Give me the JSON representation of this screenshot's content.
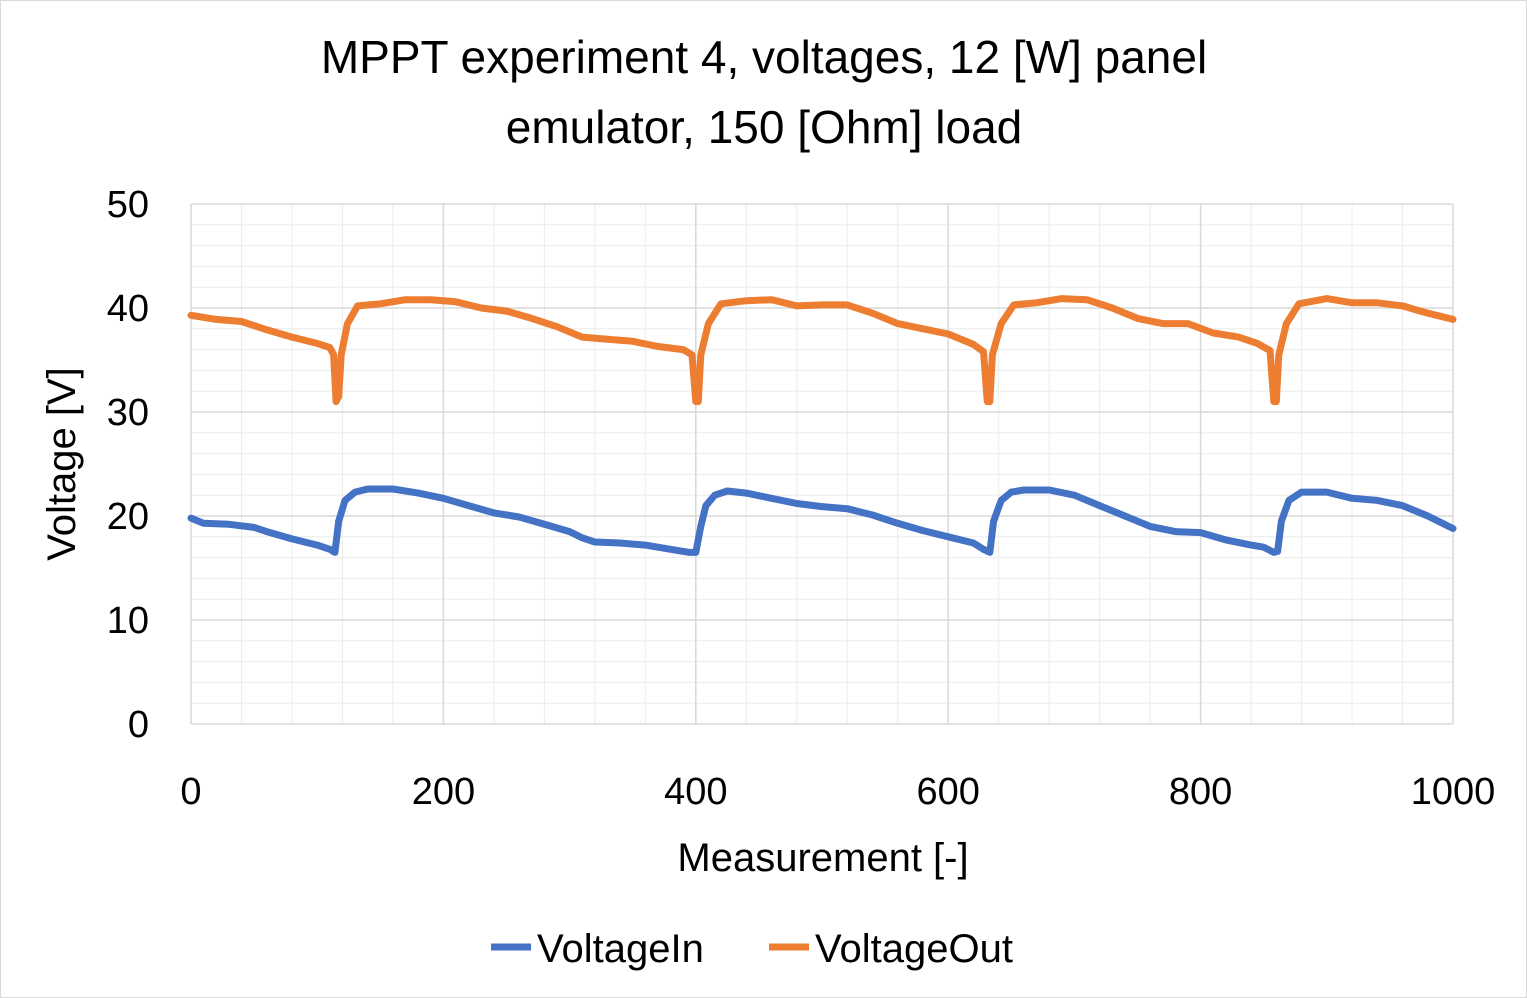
{
  "chart_data": {
    "type": "line",
    "title_lines": [
      "MPPT experiment 4, voltages, 12 [W] panel",
      "emulator, 150 [Ohm] load"
    ],
    "xlabel": "Measurement [-]",
    "ylabel": "Voltage [V]",
    "xlim": [
      0,
      1000
    ],
    "ylim": [
      0,
      50
    ],
    "x_ticks": [
      "0",
      "200",
      "400",
      "600",
      "800",
      "1000"
    ],
    "y_ticks": [
      "0",
      "10",
      "20",
      "30",
      "40",
      "50"
    ],
    "grid": "major and minor",
    "legend_position": "bottom",
    "series": [
      {
        "name": "VoltageIn",
        "color": "#4472C4",
        "points": [
          [
            0,
            19.8
          ],
          [
            10,
            19.3
          ],
          [
            30,
            19.2
          ],
          [
            50,
            18.9
          ],
          [
            60,
            18.5
          ],
          [
            80,
            17.8
          ],
          [
            100,
            17.2
          ],
          [
            110,
            16.8
          ],
          [
            114,
            16.5
          ],
          [
            117,
            19.5
          ],
          [
            122,
            21.5
          ],
          [
            130,
            22.3
          ],
          [
            140,
            22.6
          ],
          [
            160,
            22.6
          ],
          [
            180,
            22.2
          ],
          [
            200,
            21.7
          ],
          [
            220,
            21.0
          ],
          [
            240,
            20.3
          ],
          [
            260,
            19.9
          ],
          [
            280,
            19.2
          ],
          [
            300,
            18.5
          ],
          [
            310,
            17.9
          ],
          [
            320,
            17.5
          ],
          [
            340,
            17.4
          ],
          [
            360,
            17.2
          ],
          [
            380,
            16.8
          ],
          [
            395,
            16.5
          ],
          [
            400,
            16.5
          ],
          [
            404,
            19.0
          ],
          [
            408,
            21.0
          ],
          [
            415,
            22.0
          ],
          [
            425,
            22.4
          ],
          [
            440,
            22.2
          ],
          [
            460,
            21.7
          ],
          [
            480,
            21.2
          ],
          [
            500,
            20.9
          ],
          [
            520,
            20.7
          ],
          [
            540,
            20.1
          ],
          [
            560,
            19.3
          ],
          [
            580,
            18.6
          ],
          [
            600,
            18.0
          ],
          [
            620,
            17.4
          ],
          [
            628,
            16.8
          ],
          [
            633,
            16.5
          ],
          [
            636,
            19.5
          ],
          [
            642,
            21.5
          ],
          [
            650,
            22.3
          ],
          [
            660,
            22.5
          ],
          [
            680,
            22.5
          ],
          [
            700,
            22.0
          ],
          [
            720,
            21.0
          ],
          [
            740,
            20.0
          ],
          [
            760,
            19.0
          ],
          [
            780,
            18.5
          ],
          [
            800,
            18.4
          ],
          [
            820,
            17.7
          ],
          [
            840,
            17.2
          ],
          [
            850,
            17.0
          ],
          [
            858,
            16.5
          ],
          [
            861,
            16.6
          ],
          [
            864,
            19.5
          ],
          [
            870,
            21.5
          ],
          [
            880,
            22.3
          ],
          [
            900,
            22.3
          ],
          [
            920,
            21.7
          ],
          [
            940,
            21.5
          ],
          [
            960,
            21.0
          ],
          [
            980,
            20.0
          ],
          [
            1000,
            18.8
          ]
        ]
      },
      {
        "name": "VoltageOut",
        "color": "#ED7D31",
        "points": [
          [
            0,
            39.3
          ],
          [
            20,
            38.9
          ],
          [
            40,
            38.7
          ],
          [
            60,
            37.9
          ],
          [
            80,
            37.2
          ],
          [
            100,
            36.6
          ],
          [
            110,
            36.2
          ],
          [
            113,
            35.5
          ],
          [
            115,
            31.0
          ],
          [
            117,
            31.5
          ],
          [
            119,
            35.5
          ],
          [
            124,
            38.5
          ],
          [
            132,
            40.2
          ],
          [
            150,
            40.4
          ],
          [
            170,
            40.8
          ],
          [
            190,
            40.8
          ],
          [
            210,
            40.6
          ],
          [
            230,
            40.0
          ],
          [
            250,
            39.7
          ],
          [
            270,
            39.0
          ],
          [
            290,
            38.2
          ],
          [
            310,
            37.2
          ],
          [
            330,
            37.0
          ],
          [
            350,
            36.8
          ],
          [
            370,
            36.3
          ],
          [
            390,
            36.0
          ],
          [
            397,
            35.5
          ],
          [
            400,
            31.0
          ],
          [
            402,
            31.0
          ],
          [
            404,
            35.5
          ],
          [
            410,
            38.5
          ],
          [
            420,
            40.4
          ],
          [
            440,
            40.7
          ],
          [
            460,
            40.8
          ],
          [
            480,
            40.2
          ],
          [
            500,
            40.3
          ],
          [
            520,
            40.3
          ],
          [
            540,
            39.5
          ],
          [
            560,
            38.5
          ],
          [
            580,
            38.0
          ],
          [
            600,
            37.5
          ],
          [
            620,
            36.5
          ],
          [
            628,
            35.8
          ],
          [
            631,
            31.0
          ],
          [
            633,
            31.0
          ],
          [
            635,
            35.5
          ],
          [
            642,
            38.5
          ],
          [
            652,
            40.3
          ],
          [
            670,
            40.5
          ],
          [
            690,
            40.9
          ],
          [
            710,
            40.8
          ],
          [
            730,
            40.0
          ],
          [
            750,
            39.0
          ],
          [
            770,
            38.5
          ],
          [
            790,
            38.5
          ],
          [
            810,
            37.6
          ],
          [
            830,
            37.2
          ],
          [
            845,
            36.6
          ],
          [
            855,
            35.9
          ],
          [
            858,
            31.0
          ],
          [
            860,
            31.0
          ],
          [
            862,
            35.5
          ],
          [
            868,
            38.5
          ],
          [
            878,
            40.4
          ],
          [
            900,
            40.9
          ],
          [
            920,
            40.5
          ],
          [
            940,
            40.5
          ],
          [
            960,
            40.2
          ],
          [
            980,
            39.5
          ],
          [
            1000,
            38.9
          ]
        ]
      }
    ]
  }
}
